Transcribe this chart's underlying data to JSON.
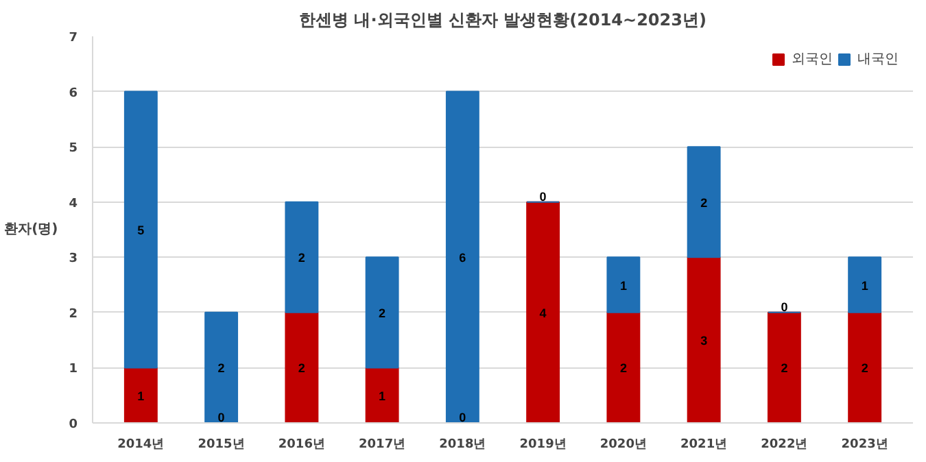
{
  "chart_data": {
    "type": "bar",
    "title": "한센병 내·외국인별 신환자 발생현황(2014~2023년)",
    "ylabel": "환자(명)",
    "categories": [
      "2014년",
      "2015년",
      "2016년",
      "2017년",
      "2018년",
      "2019년",
      "2020년",
      "2021년",
      "2022년",
      "2023년"
    ],
    "stacked": true,
    "data_labels": true,
    "grid": "y",
    "legend": "top right",
    "ylim": [
      0,
      7
    ],
    "yticks": [
      0,
      1,
      2,
      3,
      4,
      5,
      6,
      7
    ],
    "series": [
      {
        "name": "외국인",
        "color": "#c00000",
        "values": [
          1,
          0,
          2,
          1,
          0,
          4,
          2,
          3,
          2,
          2
        ]
      },
      {
        "name": "내국인",
        "color": "#1f6fb4",
        "values": [
          5,
          2,
          2,
          2,
          6,
          0,
          1,
          2,
          0,
          1
        ]
      }
    ]
  }
}
